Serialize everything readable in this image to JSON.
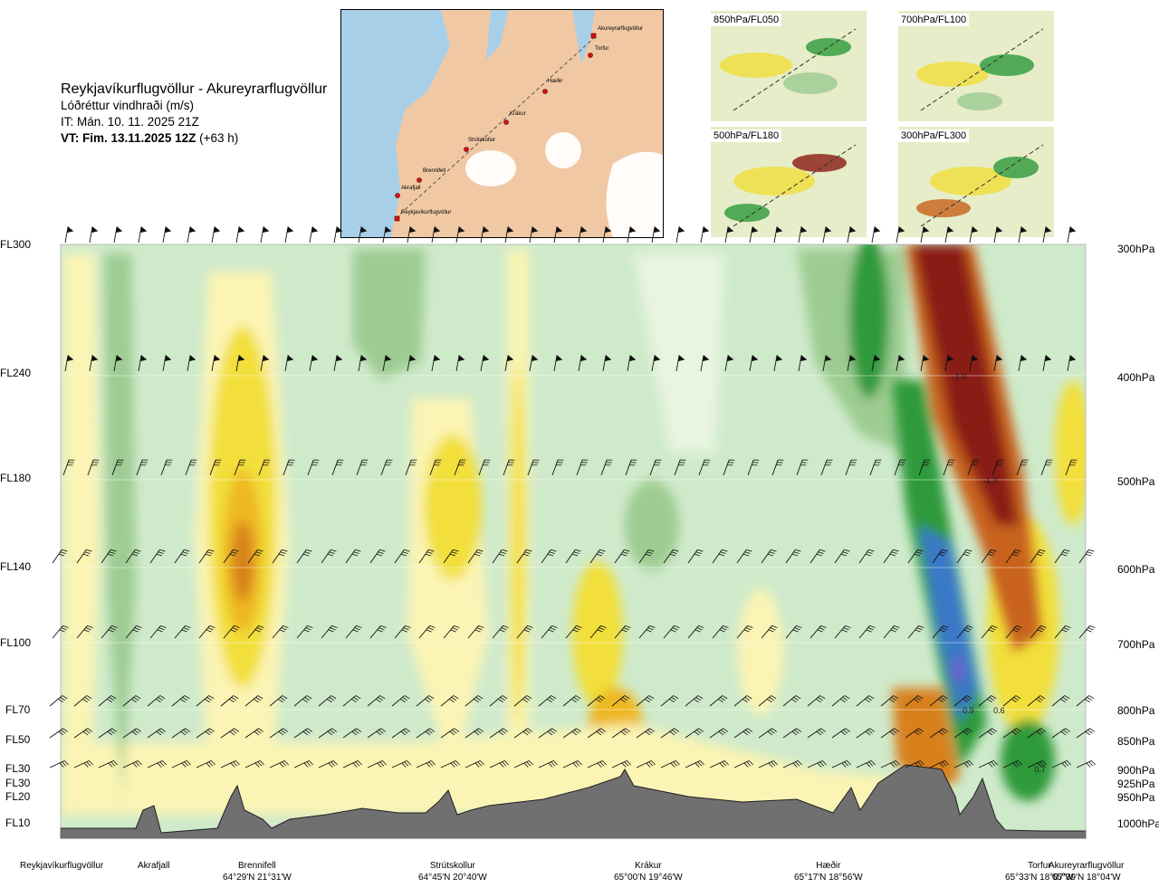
{
  "title": {
    "route": "Reykjavíkurflugvöllur - Akureyrarflugvöllur",
    "quantity": "Lóðréttur vindhraði (m/s)",
    "issue": "IT: Mán. 10. 11. 2025 21Z",
    "valid_prefix": "VT: Fim. 13.11.2025 12Z",
    "valid_suffix": " (+63 h)"
  },
  "map_points": [
    "Akureyrarflugvöllur",
    "Torfur",
    "Hæðir",
    "Krákur",
    "Strútskollur",
    "Brennifell",
    "Akrafjall",
    "Reykjavíkurflugvöllur"
  ],
  "mini_maps": [
    "850hPa/FL050",
    "700hPa/FL100",
    "500hPa/FL180",
    "300hPa/FL300"
  ],
  "levels": [
    {
      "fl": "FL300",
      "hpa": "300hPa"
    },
    {
      "fl": "FL240",
      "hpa": "400hPa"
    },
    {
      "fl": "FL180",
      "hpa": "500hPa"
    },
    {
      "fl": "FL140",
      "hpa": "600hPa"
    },
    {
      "fl": "FL100",
      "hpa": "700hPa"
    },
    {
      "fl": "FL70",
      "hpa": "800hPa"
    },
    {
      "fl": "FL50",
      "hpa": "850hPa"
    },
    {
      "fl": "FL30",
      "hpa": "900hPa"
    },
    {
      "fl": "FL30",
      "hpa": "925hPa"
    },
    {
      "fl": "FL20",
      "hpa": "950hPa"
    },
    {
      "fl": "FL10",
      "hpa": "1000hPa"
    }
  ],
  "locations": [
    {
      "name": "Reykjavíkurflugvöllur",
      "coord": ""
    },
    {
      "name": "Akrafjall",
      "coord": ""
    },
    {
      "name": "Brennifell",
      "coord": "64°29'N 21°31'W"
    },
    {
      "name": "Strútskollur",
      "coord": "64°45'N 20°40'W"
    },
    {
      "name": "Krákur",
      "coord": "65°00'N 19°46'W"
    },
    {
      "name": "Hæðir",
      "coord": "65°17'N 18°56'W"
    },
    {
      "name": "Torfur",
      "coord": "65°33'N 18°07'W"
    },
    {
      "name": "Akureyrarflugvöllur",
      "coord": "65°39'N 18°04'W"
    }
  ],
  "chart_data": {
    "type": "heatmap",
    "title": "Reykjavíkurflugvöllur - Akureyrarflugvöllur",
    "variable": "Lóðréttur vindhraði (m/s)",
    "y_axis_left": [
      "FL300",
      "FL240",
      "FL180",
      "FL140",
      "FL100",
      "FL70",
      "FL50",
      "FL30",
      "FL30",
      "FL20",
      "FL10"
    ],
    "y_axis_right": [
      "300hPa",
      "400hPa",
      "500hPa",
      "600hPa",
      "700hPa",
      "800hPa",
      "850hPa",
      "900hPa",
      "925hPa",
      "950hPa",
      "1000hPa"
    ],
    "x_axis_points": [
      "Reykjavíkurflugvöllur",
      "Akrafjall",
      "Brennifell",
      "Strútskollur",
      "Krákur",
      "Hæðir",
      "Torfur",
      "Akureyrarflugvöllur"
    ],
    "contour_labels": [
      {
        "text": "-1.0",
        "pressure_hPa": 400,
        "along_route": 0.87
      },
      {
        "text": "-1.3",
        "pressure_hPa": 500,
        "along_route": 0.9
      },
      {
        "text": "0.9",
        "pressure_hPa": 800,
        "along_route": 0.88
      },
      {
        "text": "0.6",
        "pressure_hPa": 800,
        "along_route": 0.91
      },
      {
        "text": "0.7",
        "pressure_hPa": 900,
        "along_route": 0.95
      }
    ],
    "colors": {
      "strong_descent": "#8a1a14",
      "descent": "#c8621a",
      "weak_descent": "#f2df3a",
      "very_weak_descent": "#fbf4b4",
      "neutral": "#cfeacb",
      "weak_ascent": "#9dcc92",
      "ascent": "#2e9a3a",
      "strong_ascent": "#3a78c8",
      "terrain": "#707070"
    }
  }
}
